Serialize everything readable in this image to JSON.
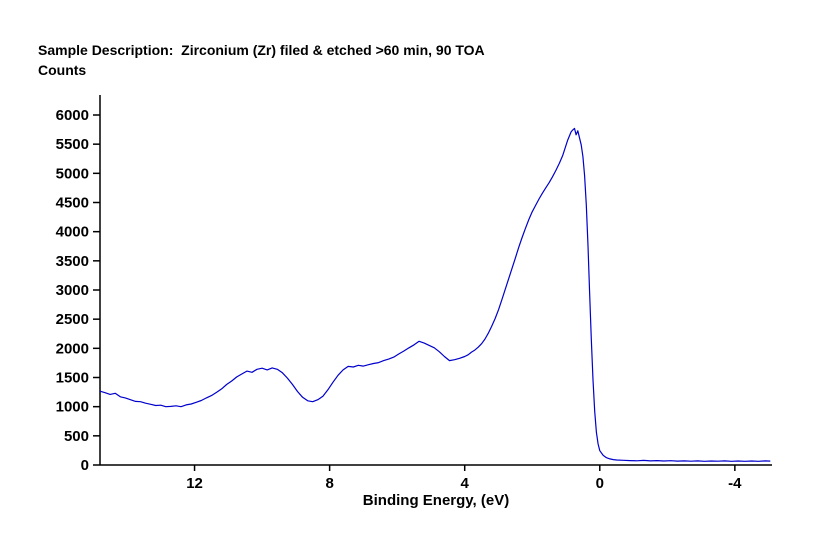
{
  "header": {
    "sample_description": "Sample Description:  Zirconium (Zr) filed & etched >60 min, 90 TOA",
    "y_axis_caption": "Counts"
  },
  "chart_data": {
    "type": "line",
    "title": "Sample Description:  Zirconium (Zr) filed & etched >60 min, 90 TOA",
    "xlabel": "Binding Energy, (eV)",
    "ylabel": "Counts",
    "x_axis_reversed": true,
    "x_range": [
      14.8,
      -5.1
    ],
    "ylim": [
      0,
      6000
    ],
    "x_ticks": [
      12,
      8,
      4,
      0,
      -4
    ],
    "y_ticks": [
      0,
      500,
      1000,
      1500,
      2000,
      2500,
      3000,
      3500,
      4000,
      4500,
      5000,
      5500,
      6000
    ],
    "grid": false,
    "legend": false,
    "line_color": "#0000cc",
    "axis_color": "#000000",
    "points": [
      [
        14.8,
        1265
      ],
      [
        14.65,
        1240
      ],
      [
        14.5,
        1210
      ],
      [
        14.35,
        1230
      ],
      [
        14.2,
        1170
      ],
      [
        14.05,
        1150
      ],
      [
        13.9,
        1120
      ],
      [
        13.75,
        1090
      ],
      [
        13.6,
        1085
      ],
      [
        13.45,
        1060
      ],
      [
        13.3,
        1040
      ],
      [
        13.15,
        1020
      ],
      [
        13.0,
        1025
      ],
      [
        12.85,
        1000
      ],
      [
        12.7,
        1005
      ],
      [
        12.55,
        1015
      ],
      [
        12.4,
        1000
      ],
      [
        12.25,
        1030
      ],
      [
        12.1,
        1045
      ],
      [
        11.95,
        1075
      ],
      [
        11.8,
        1105
      ],
      [
        11.65,
        1150
      ],
      [
        11.5,
        1190
      ],
      [
        11.35,
        1245
      ],
      [
        11.2,
        1305
      ],
      [
        11.05,
        1380
      ],
      [
        10.9,
        1440
      ],
      [
        10.75,
        1510
      ],
      [
        10.6,
        1560
      ],
      [
        10.45,
        1610
      ],
      [
        10.3,
        1590
      ],
      [
        10.15,
        1640
      ],
      [
        10.0,
        1660
      ],
      [
        9.85,
        1630
      ],
      [
        9.7,
        1665
      ],
      [
        9.55,
        1640
      ],
      [
        9.4,
        1580
      ],
      [
        9.25,
        1490
      ],
      [
        9.1,
        1380
      ],
      [
        8.95,
        1260
      ],
      [
        8.8,
        1160
      ],
      [
        8.65,
        1100
      ],
      [
        8.5,
        1085
      ],
      [
        8.35,
        1120
      ],
      [
        8.2,
        1180
      ],
      [
        8.05,
        1290
      ],
      [
        7.9,
        1420
      ],
      [
        7.75,
        1540
      ],
      [
        7.6,
        1630
      ],
      [
        7.45,
        1690
      ],
      [
        7.3,
        1680
      ],
      [
        7.15,
        1710
      ],
      [
        7.0,
        1695
      ],
      [
        6.85,
        1720
      ],
      [
        6.7,
        1740
      ],
      [
        6.55,
        1755
      ],
      [
        6.4,
        1790
      ],
      [
        6.25,
        1815
      ],
      [
        6.1,
        1850
      ],
      [
        5.95,
        1905
      ],
      [
        5.8,
        1955
      ],
      [
        5.65,
        2010
      ],
      [
        5.5,
        2060
      ],
      [
        5.35,
        2120
      ],
      [
        5.2,
        2090
      ],
      [
        5.05,
        2050
      ],
      [
        4.9,
        2010
      ],
      [
        4.75,
        1940
      ],
      [
        4.6,
        1860
      ],
      [
        4.45,
        1790
      ],
      [
        4.3,
        1805
      ],
      [
        4.15,
        1830
      ],
      [
        4.0,
        1860
      ],
      [
        3.9,
        1890
      ],
      [
        3.8,
        1935
      ],
      [
        3.7,
        1970
      ],
      [
        3.6,
        2020
      ],
      [
        3.5,
        2080
      ],
      [
        3.4,
        2160
      ],
      [
        3.3,
        2260
      ],
      [
        3.2,
        2380
      ],
      [
        3.1,
        2510
      ],
      [
        3.0,
        2660
      ],
      [
        2.9,
        2830
      ],
      [
        2.8,
        3010
      ],
      [
        2.7,
        3190
      ],
      [
        2.6,
        3370
      ],
      [
        2.5,
        3550
      ],
      [
        2.4,
        3730
      ],
      [
        2.3,
        3900
      ],
      [
        2.2,
        4060
      ],
      [
        2.1,
        4210
      ],
      [
        2.0,
        4340
      ],
      [
        1.9,
        4450
      ],
      [
        1.8,
        4560
      ],
      [
        1.7,
        4660
      ],
      [
        1.6,
        4750
      ],
      [
        1.5,
        4840
      ],
      [
        1.4,
        4940
      ],
      [
        1.3,
        5050
      ],
      [
        1.2,
        5170
      ],
      [
        1.1,
        5300
      ],
      [
        1.0,
        5480
      ],
      [
        0.95,
        5570
      ],
      [
        0.9,
        5640
      ],
      [
        0.85,
        5710
      ],
      [
        0.8,
        5745
      ],
      [
        0.75,
        5770
      ],
      [
        0.7,
        5660
      ],
      [
        0.65,
        5730
      ],
      [
        0.6,
        5610
      ],
      [
        0.55,
        5490
      ],
      [
        0.5,
        5290
      ],
      [
        0.45,
        4960
      ],
      [
        0.4,
        4460
      ],
      [
        0.35,
        3760
      ],
      [
        0.3,
        2960
      ],
      [
        0.25,
        2160
      ],
      [
        0.2,
        1460
      ],
      [
        0.15,
        920
      ],
      [
        0.1,
        560
      ],
      [
        0.05,
        360
      ],
      [
        0.0,
        245
      ],
      [
        -0.1,
        165
      ],
      [
        -0.2,
        125
      ],
      [
        -0.3,
        105
      ],
      [
        -0.4,
        92
      ],
      [
        -0.5,
        86
      ],
      [
        -0.7,
        80
      ],
      [
        -0.9,
        76
      ],
      [
        -1.1,
        72
      ],
      [
        -1.3,
        78
      ],
      [
        -1.5,
        70
      ],
      [
        -1.7,
        75
      ],
      [
        -1.9,
        68
      ],
      [
        -2.1,
        73
      ],
      [
        -2.3,
        66
      ],
      [
        -2.5,
        71
      ],
      [
        -2.7,
        65
      ],
      [
        -2.9,
        70
      ],
      [
        -3.1,
        64
      ],
      [
        -3.3,
        69
      ],
      [
        -3.5,
        65
      ],
      [
        -3.7,
        71
      ],
      [
        -3.9,
        64
      ],
      [
        -4.1,
        69
      ],
      [
        -4.3,
        63
      ],
      [
        -4.5,
        68
      ],
      [
        -4.7,
        64
      ],
      [
        -4.9,
        70
      ],
      [
        -5.05,
        66
      ]
    ]
  }
}
